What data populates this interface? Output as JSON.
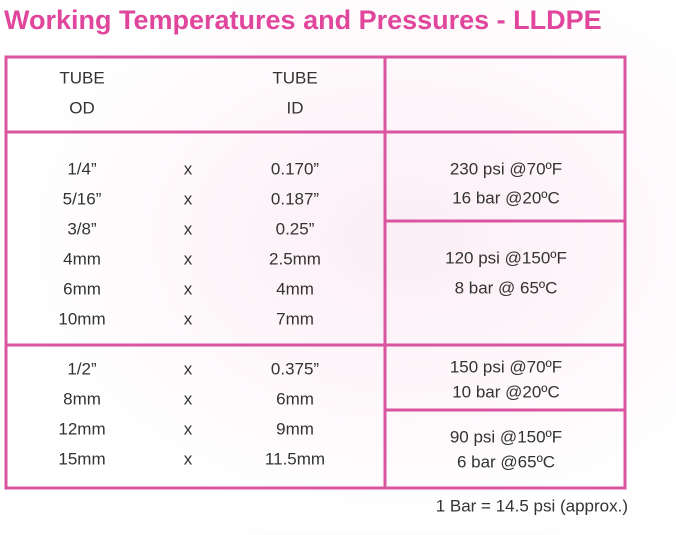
{
  "title": "Working Temperatures and Pressures - LLDPE",
  "header": {
    "od": [
      "TUBE",
      "OD"
    ],
    "id": [
      "TUBE",
      "ID"
    ]
  },
  "groups": [
    {
      "rows": [
        [
          "1/4”",
          "x",
          "0.170”"
        ],
        [
          "5/16”",
          "x",
          "0.187”"
        ],
        [
          "3/8”",
          "x",
          "0.25”"
        ],
        [
          "4mm",
          "x",
          "2.5mm"
        ],
        [
          "6mm",
          "x",
          "4mm"
        ],
        [
          "10mm",
          "x",
          "7mm"
        ]
      ],
      "ratings": [
        [
          "230 psi @70ºF",
          "16 bar @20ºC"
        ],
        [
          "120 psi @150ºF",
          "8 bar @ 65ºC"
        ]
      ]
    },
    {
      "rows": [
        [
          "1/2”",
          "x",
          "0.375”"
        ],
        [
          "8mm",
          "x",
          "6mm"
        ],
        [
          "12mm",
          "x",
          "9mm"
        ],
        [
          "15mm",
          "x",
          "11.5mm"
        ]
      ],
      "ratings": [
        [
          "150 psi @70ºF",
          "10 bar @20ºC"
        ],
        [
          "90 psi @150ºF",
          "6 bar @65ºC"
        ]
      ]
    }
  ],
  "footnote": "1 Bar = 14.5 psi (approx.)"
}
